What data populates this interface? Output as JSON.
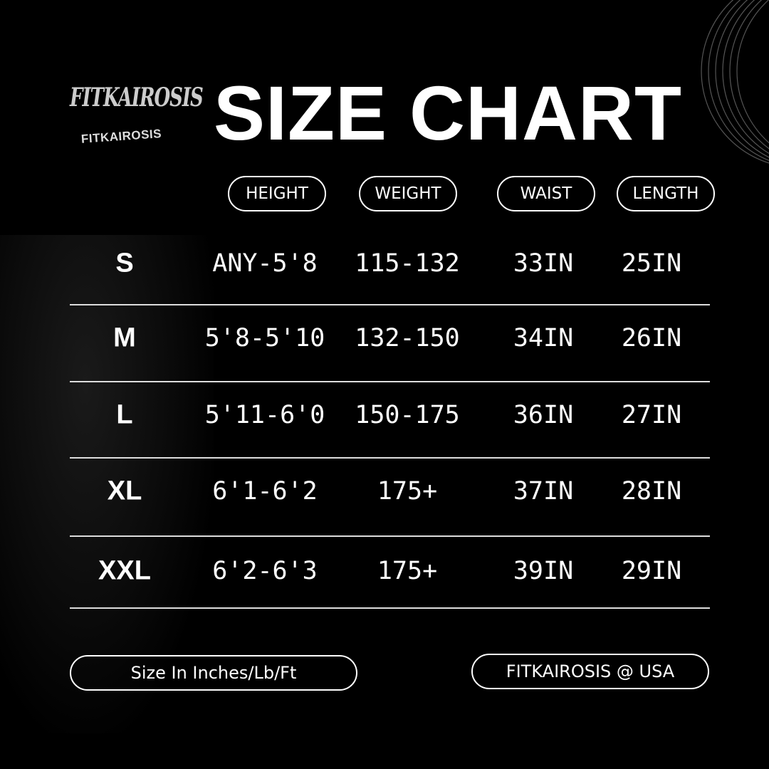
{
  "brand": {
    "logo_text": "FITKAIROSIS",
    "logo_mark": "FITKAIROSIS"
  },
  "title": "SIZE CHART",
  "columns": [
    "HEIGHT",
    "WEIGHT",
    "WAIST",
    "LENGTH"
  ],
  "rows": [
    {
      "size": "S",
      "height": "ANY-5'8",
      "weight": "115-132",
      "waist": "33IN",
      "length": "25IN"
    },
    {
      "size": "M",
      "height": "5'8-5'10",
      "weight": "132-150",
      "waist": "34IN",
      "length": "26IN"
    },
    {
      "size": "L",
      "height": "5'11-6'0",
      "weight": "150-175",
      "waist": "36IN",
      "length": "27IN"
    },
    {
      "size": "XL",
      "height": "6'1-6'2",
      "weight": "175+",
      "waist": "37IN",
      "length": "28IN"
    },
    {
      "size": "XXL",
      "height": "6'2-6'3",
      "weight": "175+",
      "waist": "39IN",
      "length": "29IN"
    }
  ],
  "footer": {
    "units": "Size In Inches/Lb/Ft",
    "brand": "FITKAIROSIS @ USA"
  },
  "colors": {
    "background": "#000000",
    "text": "#ffffff"
  }
}
